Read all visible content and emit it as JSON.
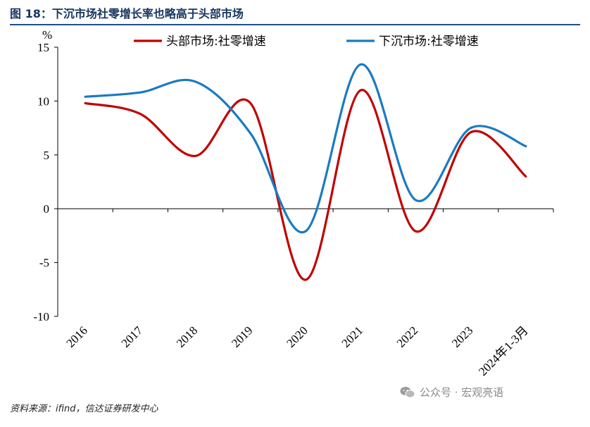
{
  "header": {
    "title": "图 18：下沉市场社零增长率也略高于头部市场"
  },
  "source": {
    "text": "资料来源：ifind，信达证券研发中心"
  },
  "watermark": {
    "icon": "wechat-icon",
    "text": "公众号 · 宏观亮语"
  },
  "chart_data": {
    "type": "line",
    "title": "图 18：下沉市场社零增长率也略高于头部市场",
    "ylabel": "%",
    "xlabel": "",
    "ylim": [
      -10,
      15
    ],
    "yticks": [
      15,
      10,
      5,
      0,
      -5,
      -10
    ],
    "categories": [
      "2016",
      "2017",
      "2018",
      "2019",
      "2020",
      "2021",
      "2022",
      "2023",
      "2024年1-3月"
    ],
    "series": [
      {
        "name": "头部市场:社零增速",
        "color": "#c00000",
        "values": [
          9.8,
          8.8,
          4.9,
          9.8,
          -6.6,
          11.0,
          -2.1,
          7.1,
          3.0
        ]
      },
      {
        "name": "下沉市场:社零增速",
        "color": "#1b7bc0",
        "values": [
          10.4,
          10.8,
          11.8,
          7.0,
          -2.1,
          13.4,
          0.8,
          7.5,
          5.8
        ]
      }
    ],
    "legend": "top"
  }
}
